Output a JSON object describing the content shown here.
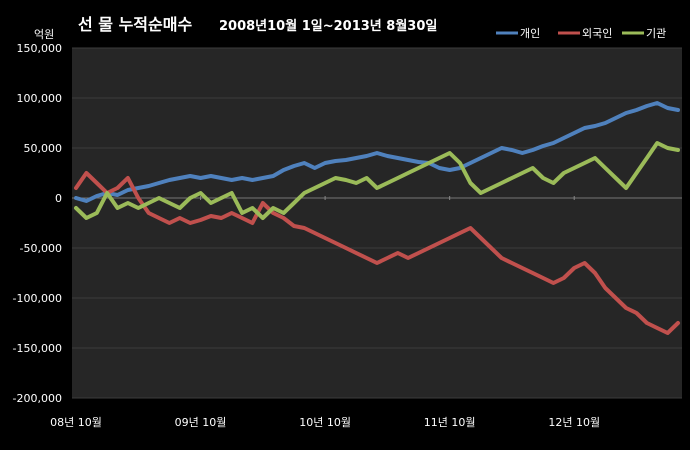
{
  "chart_data": {
    "type": "line",
    "title": "선 물 누적순매수",
    "subtitle": "2008년10월 1일~2013년 8월30일",
    "y_unit": "억원",
    "ylim": [
      -200000,
      150000
    ],
    "y_ticks": [
      150000,
      100000,
      50000,
      0,
      -50000,
      -100000,
      -150000,
      -200000
    ],
    "y_tick_labels": [
      "150,000",
      "100,000",
      "50,000",
      "0",
      "-50,000",
      "-100,000",
      "-150,000",
      "-200,000"
    ],
    "x_tick_labels": [
      "08년 10월",
      "09년 10월",
      "10년 10월",
      "11년 10월",
      "12년 10월"
    ],
    "legend_position": "top-right",
    "grid": true,
    "colors": {
      "background": "#000000",
      "plot_background": "#262626",
      "grid": "#3c3c3c"
    },
    "x": [
      "2008-10",
      "2008-11",
      "2008-12",
      "2009-01",
      "2009-02",
      "2009-03",
      "2009-04",
      "2009-05",
      "2009-06",
      "2009-07",
      "2009-08",
      "2009-09",
      "2009-10",
      "2009-11",
      "2009-12",
      "2010-01",
      "2010-02",
      "2010-03",
      "2010-04",
      "2010-05",
      "2010-06",
      "2010-07",
      "2010-08",
      "2010-09",
      "2010-10",
      "2010-11",
      "2010-12",
      "2011-01",
      "2011-02",
      "2011-03",
      "2011-04",
      "2011-05",
      "2011-06",
      "2011-07",
      "2011-08",
      "2011-09",
      "2011-10",
      "2011-11",
      "2011-12",
      "2012-01",
      "2012-02",
      "2012-03",
      "2012-04",
      "2012-05",
      "2012-06",
      "2012-07",
      "2012-08",
      "2012-09",
      "2012-10",
      "2012-11",
      "2012-12",
      "2013-01",
      "2013-02",
      "2013-03",
      "2013-04",
      "2013-05",
      "2013-06",
      "2013-07",
      "2013-08"
    ],
    "series": [
      {
        "name": "개인",
        "color": "#4f81bd",
        "values": [
          0,
          -3000,
          2000,
          5000,
          3000,
          8000,
          10000,
          12000,
          15000,
          18000,
          20000,
          22000,
          20000,
          22000,
          20000,
          18000,
          20000,
          18000,
          20000,
          22000,
          28000,
          32000,
          35000,
          30000,
          35000,
          37000,
          38000,
          40000,
          42000,
          45000,
          42000,
          40000,
          38000,
          36000,
          35000,
          30000,
          28000,
          30000,
          35000,
          40000,
          45000,
          50000,
          48000,
          45000,
          48000,
          52000,
          55000,
          60000,
          65000,
          70000,
          72000,
          75000,
          80000,
          85000,
          88000,
          92000,
          95000,
          90000,
          88000
        ]
      },
      {
        "name": "외국인",
        "color": "#c0504d",
        "values": [
          10000,
          25000,
          15000,
          5000,
          10000,
          20000,
          0,
          -15000,
          -20000,
          -25000,
          -20000,
          -25000,
          -22000,
          -18000,
          -20000,
          -15000,
          -20000,
          -25000,
          -5000,
          -15000,
          -20000,
          -28000,
          -30000,
          -35000,
          -40000,
          -45000,
          -50000,
          -55000,
          -60000,
          -65000,
          -60000,
          -55000,
          -60000,
          -55000,
          -50000,
          -45000,
          -40000,
          -35000,
          -30000,
          -40000,
          -50000,
          -60000,
          -65000,
          -70000,
          -75000,
          -80000,
          -85000,
          -80000,
          -70000,
          -65000,
          -75000,
          -90000,
          -100000,
          -110000,
          -115000,
          -125000,
          -130000,
          -135000,
          -125000
        ]
      },
      {
        "name": "기관",
        "color": "#9bbb59",
        "values": [
          -10000,
          -20000,
          -15000,
          5000,
          -10000,
          -5000,
          -10000,
          -5000,
          0,
          -5000,
          -10000,
          0,
          5000,
          -5000,
          0,
          5000,
          -15000,
          -10000,
          -20000,
          -10000,
          -15000,
          -5000,
          5000,
          10000,
          15000,
          20000,
          18000,
          15000,
          20000,
          10000,
          15000,
          20000,
          25000,
          30000,
          35000,
          40000,
          45000,
          35000,
          15000,
          5000,
          10000,
          15000,
          20000,
          25000,
          30000,
          20000,
          15000,
          25000,
          30000,
          35000,
          40000,
          30000,
          20000,
          10000,
          25000,
          40000,
          55000,
          50000,
          48000
        ]
      }
    ]
  }
}
